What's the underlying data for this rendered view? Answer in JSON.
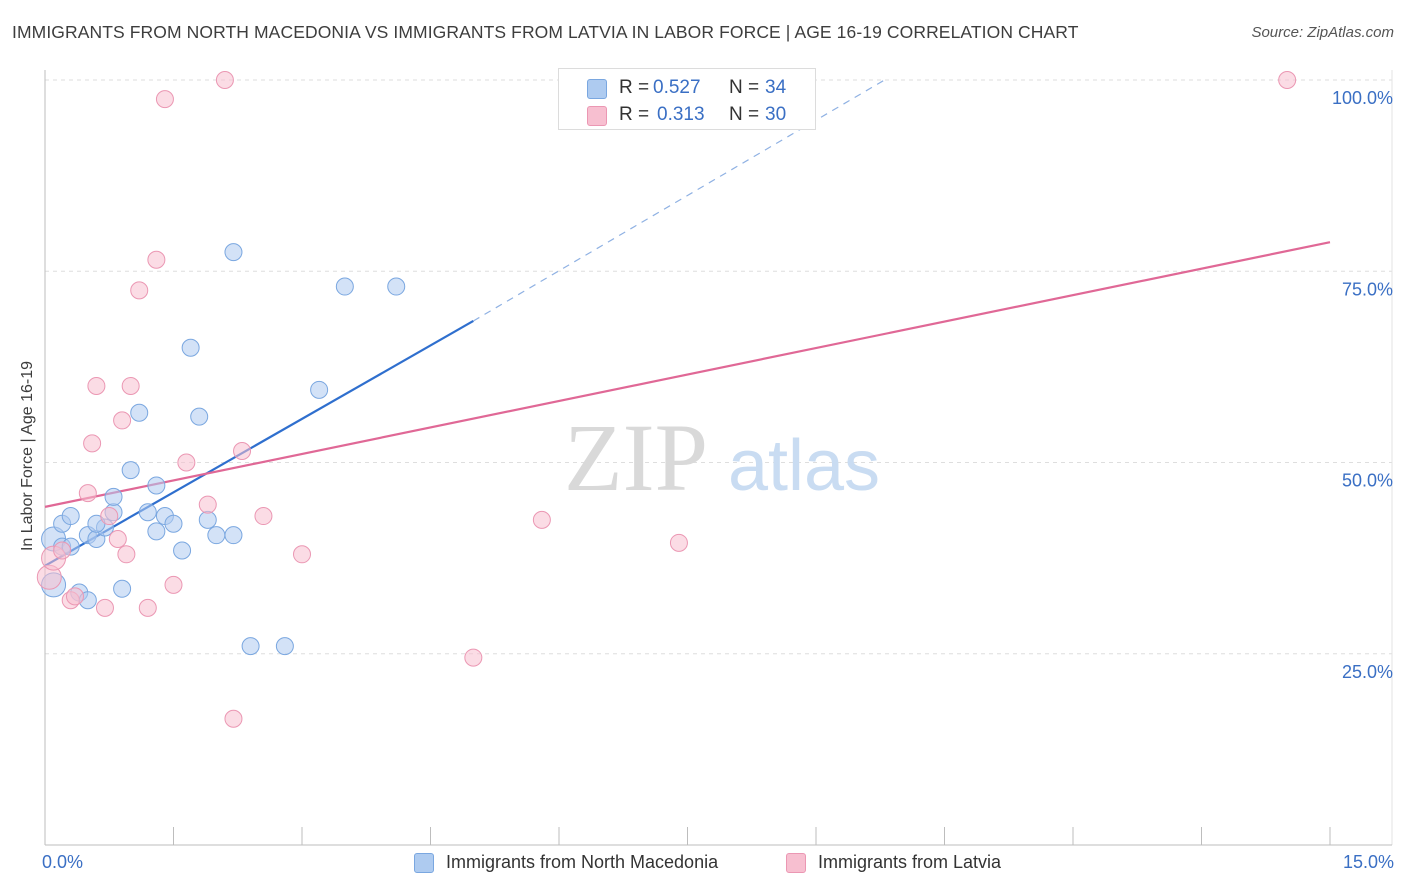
{
  "title": "IMMIGRANTS FROM NORTH MACEDONIA VS IMMIGRANTS FROM LATVIA IN LABOR FORCE | AGE 16-19 CORRELATION CHART",
  "source": "Source: ZipAtlas.com",
  "watermark": {
    "zip": "ZIP",
    "atlas": "atlas"
  },
  "colors": {
    "blue_fill": "#aecbf0",
    "blue_stroke": "#7aa7e0",
    "blue_line": "#2f6fce",
    "pink_fill": "#f7bfd0",
    "pink_stroke": "#eb97b3",
    "pink_line": "#e06896",
    "tick_text": "#3a6fc4",
    "grid": "#dedede"
  },
  "legend": {
    "r_label": "R =",
    "n_label": "N =",
    "series": [
      {
        "r": "0.527",
        "n": "34"
      },
      {
        "r": "0.313",
        "n": "30"
      }
    ]
  },
  "bottom_legend": [
    "Immigrants from North Macedonia",
    "Immigrants from Latvia"
  ],
  "chart_data": {
    "type": "scatter",
    "title": "IMMIGRANTS FROM NORTH MACEDONIA VS IMMIGRANTS FROM LATVIA IN LABOR FORCE | AGE 16-19 CORRELATION CHART",
    "xlabel": "",
    "ylabel": "In Labor Force | Age 16-19",
    "xlim": [
      0,
      15
    ],
    "ylim": [
      0,
      103
    ],
    "x_tick_labels": [
      "0.0%",
      "15.0%"
    ],
    "y_ticks": [
      25,
      50,
      75,
      100
    ],
    "y_tick_labels": [
      "25.0%",
      "50.0%",
      "75.0%",
      "100.0%"
    ],
    "grid": true,
    "legend_position": "top-center",
    "series": [
      {
        "name": "Immigrants from North Macedonia",
        "r": 0.527,
        "n": 34,
        "points": [
          [
            0.1,
            34.0
          ],
          [
            0.1,
            40.0
          ],
          [
            0.2,
            39.0
          ],
          [
            0.2,
            42.0
          ],
          [
            0.3,
            43.0
          ],
          [
            0.4,
            33.0
          ],
          [
            0.5,
            32.0
          ],
          [
            0.5,
            40.5
          ],
          [
            0.6,
            40.0
          ],
          [
            0.7,
            41.5
          ],
          [
            0.8,
            43.5
          ],
          [
            0.8,
            45.5
          ],
          [
            0.9,
            33.5
          ],
          [
            1.0,
            49.0
          ],
          [
            1.1,
            56.5
          ],
          [
            1.2,
            43.5
          ],
          [
            1.3,
            41.0
          ],
          [
            1.3,
            47.0
          ],
          [
            1.4,
            43.0
          ],
          [
            1.5,
            42.0
          ],
          [
            1.6,
            38.5
          ],
          [
            1.7,
            65.0
          ],
          [
            1.8,
            56.0
          ],
          [
            1.9,
            42.5
          ],
          [
            2.0,
            40.5
          ],
          [
            2.2,
            40.5
          ],
          [
            2.2,
            77.5
          ],
          [
            2.4,
            26.0
          ],
          [
            2.8,
            26.0
          ],
          [
            3.2,
            59.5
          ],
          [
            3.5,
            73.0
          ],
          [
            4.1,
            73.0
          ],
          [
            0.3,
            39.0
          ],
          [
            0.6,
            42.0
          ]
        ],
        "trend": {
          "x": [
            0,
            5.0
          ],
          "y": [
            36.5,
            68.5
          ],
          "dashed_to": [
            9.8,
            100.0
          ]
        }
      },
      {
        "name": "Immigrants from Latvia",
        "r": 0.313,
        "n": 30,
        "points": [
          [
            0.05,
            35.0
          ],
          [
            0.1,
            37.5
          ],
          [
            0.2,
            38.5
          ],
          [
            0.3,
            32.0
          ],
          [
            0.35,
            32.5
          ],
          [
            0.5,
            46.0
          ],
          [
            0.55,
            52.5
          ],
          [
            0.6,
            60.0
          ],
          [
            0.7,
            31.0
          ],
          [
            0.75,
            43.0
          ],
          [
            0.85,
            40.0
          ],
          [
            0.9,
            55.5
          ],
          [
            0.95,
            38.0
          ],
          [
            1.0,
            60.0
          ],
          [
            1.1,
            72.5
          ],
          [
            1.2,
            31.0
          ],
          [
            1.3,
            76.5
          ],
          [
            1.4,
            97.5
          ],
          [
            1.5,
            34.0
          ],
          [
            1.65,
            50.0
          ],
          [
            1.9,
            44.5
          ],
          [
            2.1,
            100.0
          ],
          [
            2.2,
            16.5
          ],
          [
            2.3,
            51.5
          ],
          [
            2.55,
            43.0
          ],
          [
            3.0,
            38.0
          ],
          [
            5.0,
            24.5
          ],
          [
            5.8,
            42.5
          ],
          [
            7.4,
            39.5
          ],
          [
            14.5,
            100.0
          ]
        ],
        "trend": {
          "x": [
            0,
            15.0
          ],
          "y": [
            44.2,
            78.8
          ]
        }
      }
    ]
  }
}
